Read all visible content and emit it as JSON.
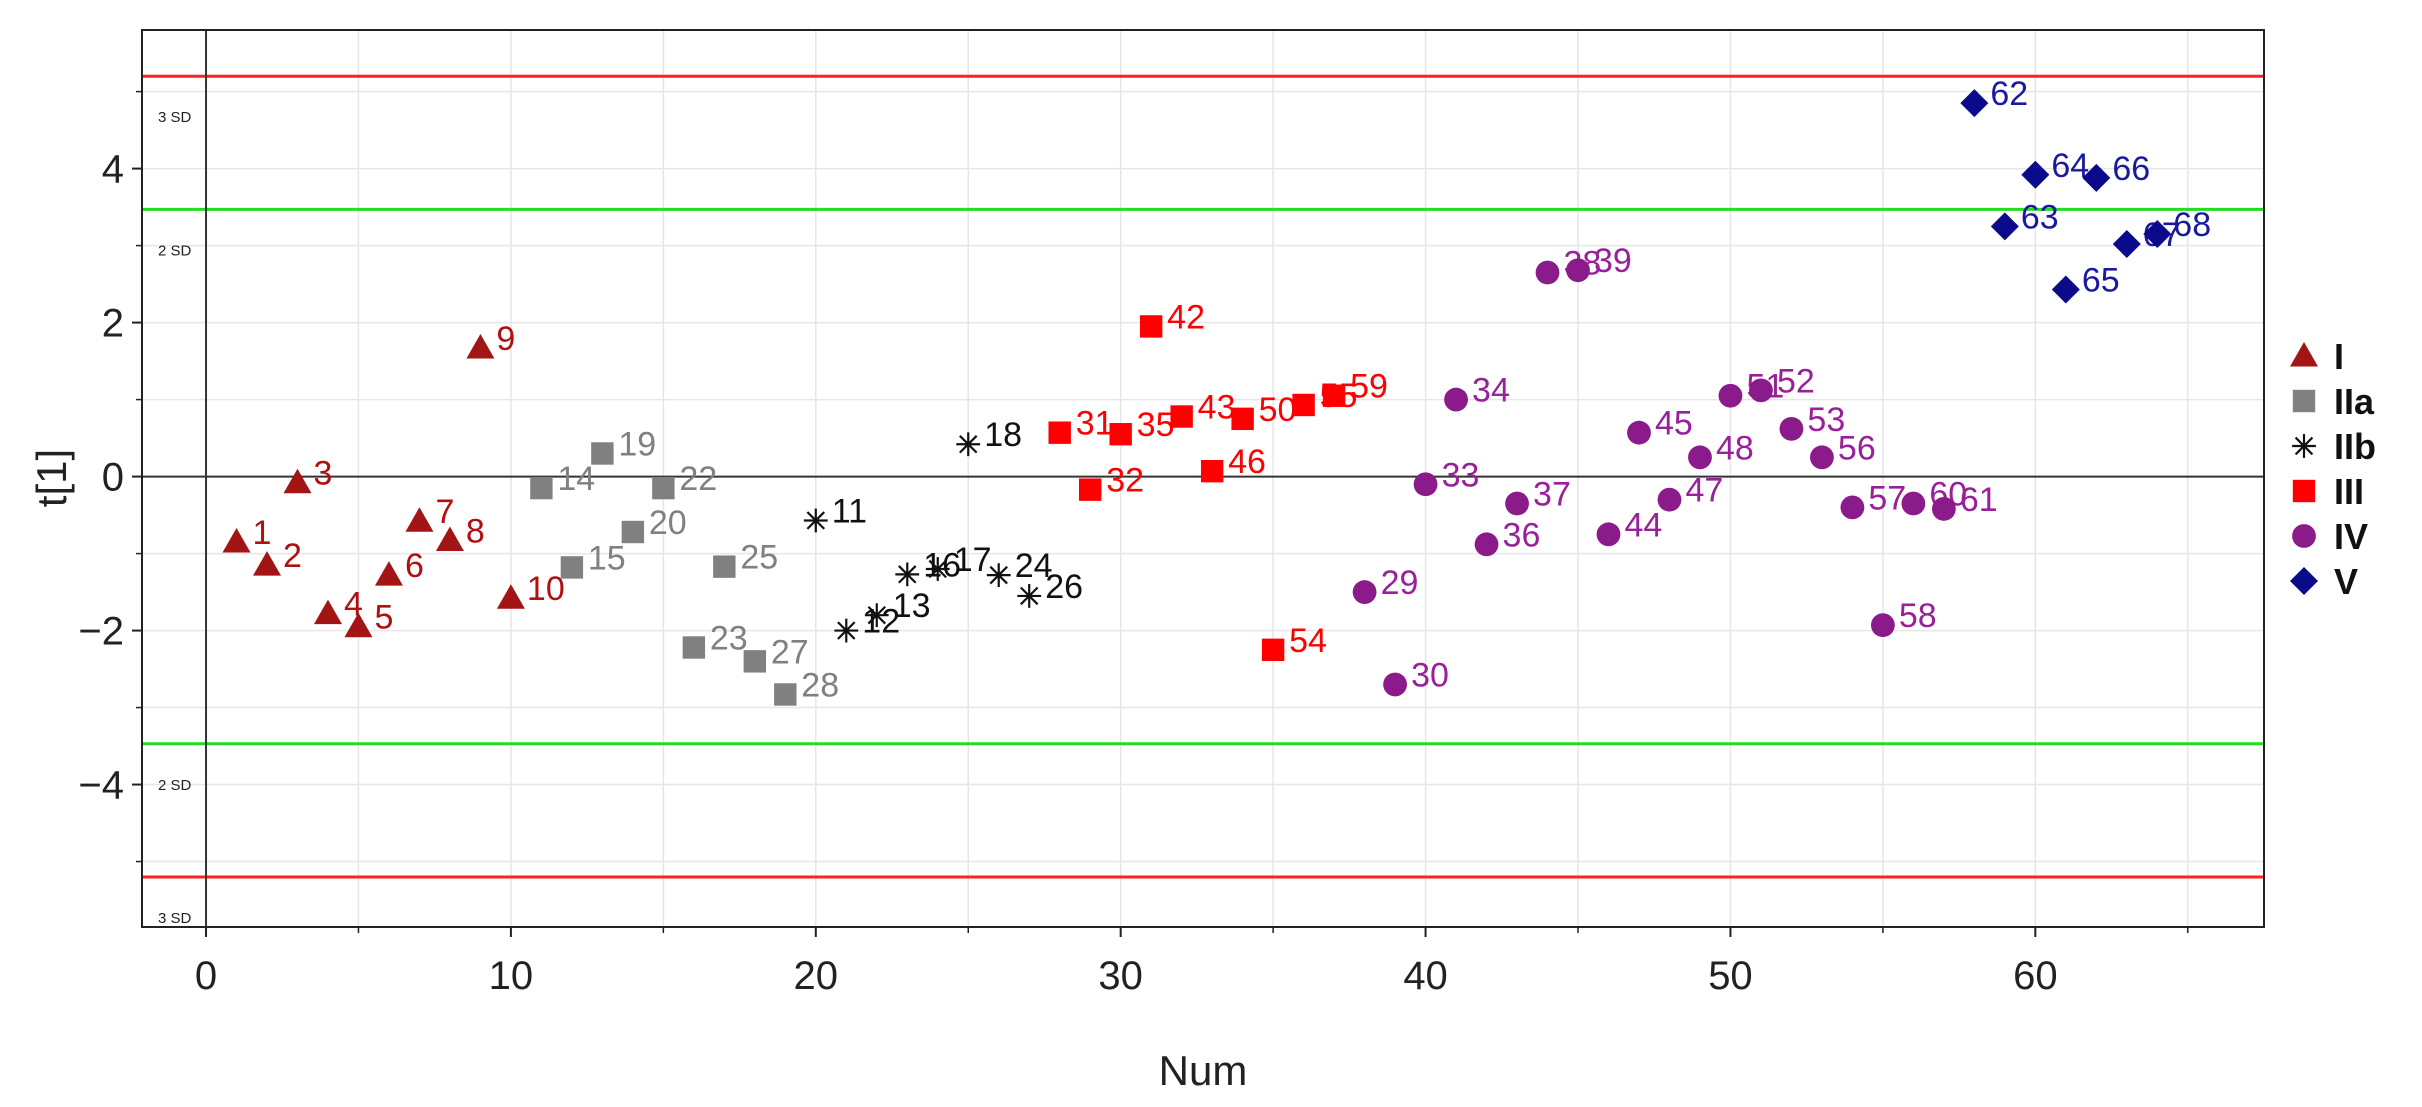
{
  "chart_data": {
    "type": "scatter",
    "title": "",
    "xlabel": "Num",
    "ylabel": "t[1]",
    "xlim": [
      -2.1,
      67.5
    ],
    "ylim": [
      -5.85,
      5.8
    ],
    "x_ticks": [
      0,
      10,
      20,
      30,
      40,
      50,
      60
    ],
    "y_ticks": [
      -4,
      -2,
      0,
      2,
      4
    ],
    "grid": true,
    "legend_position": "right",
    "reference_lines": [
      {
        "name": "upper-3sd",
        "y": 5.2,
        "color": "#ff2020",
        "label": "3 SD"
      },
      {
        "name": "upper-2sd",
        "y": 3.47,
        "color": "#22dd22",
        "label": "2 SD"
      },
      {
        "name": "lower-2sd",
        "y": -3.47,
        "color": "#22dd22",
        "label": "2 SD"
      },
      {
        "name": "lower-3sd",
        "y": -5.2,
        "color": "#ff2020",
        "label": "3 SD"
      }
    ],
    "series": [
      {
        "name": "I",
        "marker": "triangle",
        "color": "#a31515",
        "label_color": "#b01010",
        "points": [
          {
            "x": 1,
            "y": -0.85,
            "label": "1"
          },
          {
            "x": 2,
            "y": -1.15,
            "label": "2"
          },
          {
            "x": 3,
            "y": -0.08,
            "label": "3"
          },
          {
            "x": 4,
            "y": -1.78,
            "label": "4"
          },
          {
            "x": 5,
            "y": -1.95,
            "label": "5"
          },
          {
            "x": 6,
            "y": -1.28,
            "label": "6"
          },
          {
            "x": 7,
            "y": -0.58,
            "label": "7"
          },
          {
            "x": 8,
            "y": -0.83,
            "label": "8"
          },
          {
            "x": 9,
            "y": 1.67,
            "label": "9"
          },
          {
            "x": 10,
            "y": -1.58,
            "label": "10"
          }
        ]
      },
      {
        "name": "IIa",
        "marker": "square",
        "color": "#808080",
        "label_color": "#808080",
        "points": [
          {
            "x": 11,
            "y": -0.15,
            "label": "14"
          },
          {
            "x": 12,
            "y": -1.18,
            "label": "15"
          },
          {
            "x": 13,
            "y": 0.3,
            "label": "19"
          },
          {
            "x": 14,
            "y": -0.72,
            "label": "20"
          },
          {
            "x": 15,
            "y": -0.15,
            "label": "22"
          },
          {
            "x": 16,
            "y": -2.22,
            "label": "23"
          },
          {
            "x": 17,
            "y": -1.17,
            "label": "25"
          },
          {
            "x": 18,
            "y": -2.4,
            "label": "27"
          },
          {
            "x": 19,
            "y": -2.83,
            "label": "28"
          }
        ]
      },
      {
        "name": "IIb",
        "marker": "asterisk",
        "color": "#111111",
        "label_color": "#111111",
        "points": [
          {
            "x": 20,
            "y": -0.57,
            "label": "11"
          },
          {
            "x": 21,
            "y": -2.0,
            "label": "12"
          },
          {
            "x": 22,
            "y": -1.8,
            "label": "13"
          },
          {
            "x": 23,
            "y": -1.27,
            "label": "16"
          },
          {
            "x": 24,
            "y": -1.2,
            "label": "17"
          },
          {
            "x": 25,
            "y": 0.42,
            "label": "18"
          },
          {
            "x": 26,
            "y": -1.28,
            "label": "24"
          },
          {
            "x": 27,
            "y": -1.55,
            "label": "26"
          }
        ]
      },
      {
        "name": "III",
        "marker": "square",
        "color": "#ff0000",
        "label_color": "#ff0000",
        "points": [
          {
            "x": 28,
            "y": 0.57,
            "label": "31"
          },
          {
            "x": 29,
            "y": -0.17,
            "label": "32"
          },
          {
            "x": 30,
            "y": 0.55,
            "label": "35"
          },
          {
            "x": 31,
            "y": 1.95,
            "label": "42"
          },
          {
            "x": 32,
            "y": 0.78,
            "label": "43"
          },
          {
            "x": 33,
            "y": 0.07,
            "label": "46"
          },
          {
            "x": 34,
            "y": 0.75,
            "label": "50"
          },
          {
            "x": 35,
            "y": -2.25,
            "label": "54"
          },
          {
            "x": 36,
            "y": 0.93,
            "label": "55"
          },
          {
            "x": 37,
            "y": 1.05,
            "label": "59"
          }
        ]
      },
      {
        "name": "IV",
        "marker": "circle",
        "color": "#8b1a8b",
        "label_color": "#9a1f9a",
        "points": [
          {
            "x": 38,
            "y": -1.5,
            "label": "29"
          },
          {
            "x": 39,
            "y": -2.7,
            "label": "30"
          },
          {
            "x": 40,
            "y": -0.1,
            "label": "33"
          },
          {
            "x": 41,
            "y": 1.0,
            "label": "34"
          },
          {
            "x": 42,
            "y": -0.88,
            "label": "36"
          },
          {
            "x": 43,
            "y": -0.35,
            "label": "37"
          },
          {
            "x": 44,
            "y": 2.65,
            "label": "38"
          },
          {
            "x": 45,
            "y": 2.68,
            "label": "39"
          },
          {
            "x": 46,
            "y": -0.75,
            "label": "44"
          },
          {
            "x": 47,
            "y": 0.57,
            "label": "45"
          },
          {
            "x": 48,
            "y": -0.3,
            "label": "47"
          },
          {
            "x": 49,
            "y": 0.25,
            "label": "48"
          },
          {
            "x": 50,
            "y": 1.05,
            "label": "51"
          },
          {
            "x": 51,
            "y": 1.12,
            "label": "52"
          },
          {
            "x": 52,
            "y": 0.62,
            "label": "53"
          },
          {
            "x": 53,
            "y": 0.25,
            "label": "56"
          },
          {
            "x": 54,
            "y": -0.4,
            "label": "57"
          },
          {
            "x": 55,
            "y": -1.93,
            "label": "58"
          },
          {
            "x": 56,
            "y": -0.35,
            "label": "60"
          },
          {
            "x": 57,
            "y": -0.42,
            "label": "61"
          }
        ]
      },
      {
        "name": "V",
        "marker": "diamond",
        "color": "#0a0a8a",
        "label_color": "#1a1aa0",
        "points": [
          {
            "x": 58,
            "y": 4.85,
            "label": "62"
          },
          {
            "x": 59,
            "y": 3.25,
            "label": "63"
          },
          {
            "x": 60,
            "y": 3.92,
            "label": "64"
          },
          {
            "x": 61,
            "y": 2.43,
            "label": "65"
          },
          {
            "x": 62,
            "y": 3.88,
            "label": "66"
          },
          {
            "x": 63,
            "y": 3.02,
            "label": "67"
          },
          {
            "x": 64,
            "y": 3.15,
            "label": "68"
          }
        ]
      }
    ]
  }
}
